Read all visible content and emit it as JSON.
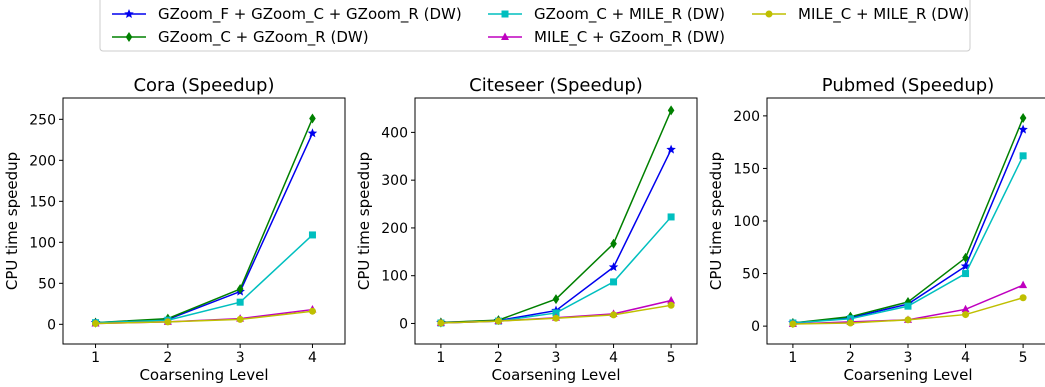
{
  "legend": [
    {
      "name": "GZoom_F + GZoom_C + GZoom_R (DW)",
      "color": "#0000ee",
      "marker": "star"
    },
    {
      "name": "GZoom_C + GZoom_R (DW)",
      "color": "#008000",
      "marker": "diamond"
    },
    {
      "name": "GZoom_C + MILE_R (DW)",
      "color": "#00bfbf",
      "marker": "square"
    },
    {
      "name": "MILE_C + GZoom_R (DW)",
      "color": "#bf00bf",
      "marker": "triangle"
    },
    {
      "name": "MILE_C + MILE_R (DW)",
      "color": "#bfbf00",
      "marker": "circle"
    }
  ],
  "chart_data": [
    {
      "type": "line",
      "title": "Cora (Speedup)",
      "xlabel": "Coarsening Level",
      "ylabel": "CPU time speedup",
      "x": [
        1,
        2,
        3,
        4
      ],
      "xticks": [
        1,
        2,
        3,
        4
      ],
      "yticks": [
        0,
        50,
        100,
        150,
        200,
        250
      ],
      "xlim": [
        0.55,
        4.45
      ],
      "ylim": [
        -24,
        276
      ],
      "series": [
        {
          "name": "GZoom_F + GZoom_C + GZoom_R (DW)",
          "values": [
            2,
            6,
            40,
            233
          ]
        },
        {
          "name": "GZoom_C + GZoom_R (DW)",
          "values": [
            2,
            7,
            43,
            251
          ]
        },
        {
          "name": "GZoom_C + MILE_R (DW)",
          "values": [
            2,
            5,
            27,
            109
          ]
        },
        {
          "name": "MILE_C + GZoom_R (DW)",
          "values": [
            1,
            3,
            7,
            18
          ]
        },
        {
          "name": "MILE_C + MILE_R (DW)",
          "values": [
            1,
            3,
            6,
            16
          ]
        }
      ]
    },
    {
      "type": "line",
      "title": "Citeseer (Speedup)",
      "xlabel": "Coarsening Level",
      "ylabel": "CPU time speedup",
      "x": [
        1,
        2,
        3,
        4,
        5
      ],
      "xticks": [
        1,
        2,
        3,
        4,
        5
      ],
      "yticks": [
        0,
        100,
        200,
        300,
        400
      ],
      "xlim": [
        0.55,
        5.45
      ],
      "ylim": [
        -43,
        472
      ],
      "series": [
        {
          "name": "GZoom_F + GZoom_C + GZoom_R (DW)",
          "values": [
            2,
            6,
            27,
            118,
            364
          ]
        },
        {
          "name": "GZoom_C + GZoom_R (DW)",
          "values": [
            2,
            7,
            51,
            167,
            446
          ]
        },
        {
          "name": "GZoom_C + MILE_R (DW)",
          "values": [
            1,
            5,
            22,
            87,
            223
          ]
        },
        {
          "name": "MILE_C + GZoom_R (DW)",
          "values": [
            1,
            5,
            12,
            20,
            48
          ]
        },
        {
          "name": "MILE_C + MILE_R (DW)",
          "values": [
            1,
            5,
            11,
            18,
            38
          ]
        }
      ]
    },
    {
      "type": "line",
      "title": "Pubmed (Speedup)",
      "xlabel": "Coarsening Level",
      "ylabel": "CPU time speedup",
      "x": [
        1,
        2,
        3,
        4,
        5
      ],
      "xticks": [
        1,
        2,
        3,
        4,
        5
      ],
      "yticks": [
        0,
        50,
        100,
        150,
        200
      ],
      "xlim": [
        0.55,
        5.45
      ],
      "ylim": [
        -17,
        217
      ],
      "series": [
        {
          "name": "GZoom_F + GZoom_C + GZoom_R (DW)",
          "values": [
            3,
            8,
            21,
            57,
            187
          ]
        },
        {
          "name": "GZoom_C + GZoom_R (DW)",
          "values": [
            3,
            9,
            23,
            65,
            198
          ]
        },
        {
          "name": "GZoom_C + MILE_R (DW)",
          "values": [
            3,
            7,
            19,
            50,
            162
          ]
        },
        {
          "name": "MILE_C + GZoom_R (DW)",
          "values": [
            2,
            4,
            6,
            16,
            39
          ]
        },
        {
          "name": "MILE_C + MILE_R (DW)",
          "values": [
            2,
            3,
            6,
            11,
            27
          ]
        }
      ]
    }
  ]
}
